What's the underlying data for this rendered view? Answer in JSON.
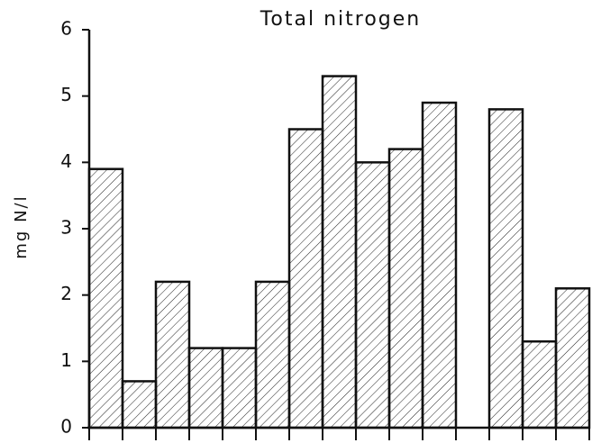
{
  "chart_data": {
    "type": "bar",
    "title": "Total nitrogen",
    "y_label": "mg N/l",
    "categories": [
      null,
      null,
      null,
      null,
      null,
      null,
      null,
      null,
      null,
      null,
      null,
      null,
      null,
      null,
      null
    ],
    "values": [
      3.9,
      0.7,
      2.2,
      1.2,
      1.2,
      2.2,
      4.5,
      5.3,
      4.0,
      4.2,
      4.9,
      null,
      4.8,
      1.3,
      2.1
    ],
    "color": "#111111",
    "hatch": true,
    "ylim": [
      0,
      6
    ],
    "yticks": [
      0,
      1,
      2,
      3,
      4,
      5,
      6
    ],
    "grid": false
  }
}
